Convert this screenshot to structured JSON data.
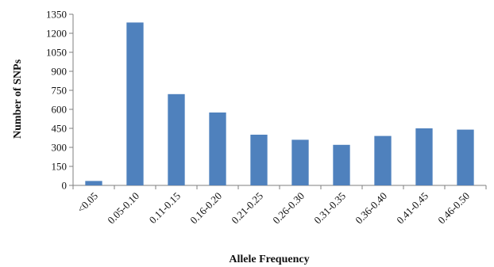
{
  "chart_data": {
    "type": "bar",
    "title": "",
    "xlabel": "Allele Frequency",
    "ylabel": "Number of SNPs",
    "categories": [
      "<0.05",
      "0.05-0.10",
      "0.11-0.15",
      "0.16-0.20",
      "0.21-0.25",
      "0.26-0.30",
      "0.31-0.35",
      "0.36-0.40",
      "0.41-0.45",
      "0.46-0.50"
    ],
    "values": [
      35,
      1285,
      720,
      575,
      400,
      360,
      320,
      390,
      450,
      440
    ],
    "ylim": [
      0,
      1350
    ],
    "yticks": [
      0,
      150,
      300,
      450,
      600,
      750,
      900,
      1050,
      1200,
      1350
    ],
    "grid": false,
    "bar_color": "#4f81bd"
  }
}
